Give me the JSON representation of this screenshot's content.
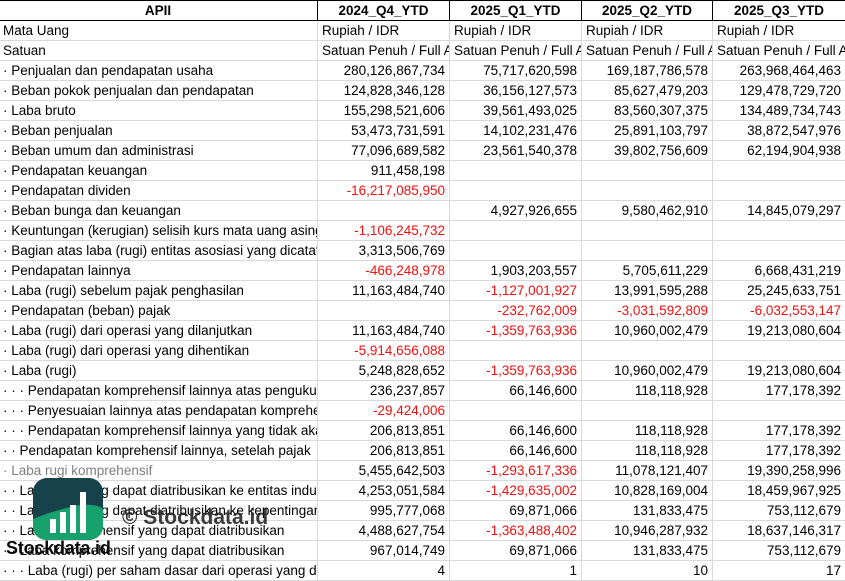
{
  "header": {
    "ticker": "APII",
    "columns": [
      "2024_Q4_YTD",
      "2025_Q1_YTD",
      "2025_Q2_YTD",
      "2025_Q3_YTD"
    ]
  },
  "meta_rows": [
    {
      "label": "Mata Uang",
      "values": [
        "Rupiah / IDR",
        "Rupiah / IDR",
        "Rupiah / IDR",
        "Rupiah / IDR"
      ]
    },
    {
      "label": "Satuan",
      "values": [
        "Satuan Penuh / Full Amount",
        "Satuan Penuh / Full Amount",
        "Satuan Penuh / Full Amount",
        "Satuan Penuh / Full Amount"
      ]
    }
  ],
  "rows": [
    {
      "label": "· Penjualan dan pendapatan usaha",
      "values": [
        "280,126,867,734",
        "75,717,620,598",
        "169,187,786,578",
        "263,968,464,463"
      ]
    },
    {
      "label": "· Beban pokok penjualan dan pendapatan",
      "values": [
        "124,828,346,128",
        "36,156,127,573",
        "85,627,479,203",
        "129,478,729,720"
      ]
    },
    {
      "label": "· Laba bruto",
      "values": [
        "155,298,521,606",
        "39,561,493,025",
        "83,560,307,375",
        "134,489,734,743"
      ]
    },
    {
      "label": "· Beban penjualan",
      "values": [
        "53,473,731,591",
        "14,102,231,476",
        "25,891,103,797",
        "38,872,547,976"
      ]
    },
    {
      "label": "· Beban umum dan administrasi",
      "values": [
        "77,096,689,582",
        "23,561,540,378",
        "39,802,756,609",
        "62,194,904,938"
      ]
    },
    {
      "label": "· Pendapatan keuangan",
      "values": [
        "911,458,198",
        "",
        "",
        ""
      ]
    },
    {
      "label": "· Pendapatan dividen",
      "values": [
        "-16,217,085,950",
        "",
        "",
        ""
      ]
    },
    {
      "label": "· Beban bunga dan keuangan",
      "values": [
        "",
        "4,927,926,655",
        "9,580,462,910",
        "14,845,079,297"
      ]
    },
    {
      "label": "· Keuntungan (kerugian) selisih kurs mata uang asing",
      "values": [
        "-1,106,245,732",
        "",
        "",
        ""
      ]
    },
    {
      "label": "· Bagian atas laba (rugi) entitas asosiasi yang dicatat",
      "values": [
        "3,313,506,769",
        "",
        "",
        ""
      ]
    },
    {
      "label": "· Pendapatan lainnya",
      "values": [
        "-466,248,978",
        "1,903,203,557",
        "5,705,611,229",
        "6,668,431,219"
      ]
    },
    {
      "label": "· Laba (rugi) sebelum pajak penghasilan",
      "values": [
        "11,163,484,740",
        "-1,127,001,927",
        "13,991,595,288",
        "25,245,633,751"
      ]
    },
    {
      "label": "· Pendapatan (beban) pajak",
      "values": [
        "",
        "-232,762,009",
        "-3,031,592,809",
        "-6,032,553,147"
      ]
    },
    {
      "label": "· Laba (rugi) dari operasi yang dilanjutkan",
      "values": [
        "11,163,484,740",
        "-1,359,763,936",
        "10,960,002,479",
        "19,213,080,604"
      ]
    },
    {
      "label": "· Laba (rugi) dari operasi yang dihentikan",
      "values": [
        "-5,914,656,088",
        "",
        "",
        ""
      ]
    },
    {
      "label": "· Laba (rugi)",
      "values": [
        "5,248,828,652",
        "-1,359,763,936",
        "10,960,002,479",
        "19,213,080,604"
      ]
    },
    {
      "label": "· · · Pendapatan komprehensif lainnya atas pengukuran",
      "values": [
        "236,237,857",
        "66,146,600",
        "118,118,928",
        "177,178,392"
      ]
    },
    {
      "label": "· · · Penyesuaian lainnya atas pendapatan komprehensif",
      "values": [
        "-29,424,006",
        "",
        "",
        ""
      ]
    },
    {
      "label": "· · · Pendapatan komprehensif lainnya yang tidak akan",
      "values": [
        "206,813,851",
        "66,146,600",
        "118,118,928",
        "177,178,392"
      ]
    },
    {
      "label": "· · Pendapatan komprehensif lainnya, setelah pajak",
      "values": [
        "206,813,851",
        "66,146,600",
        "118,118,928",
        "177,178,392"
      ]
    },
    {
      "label": "· Laba rugi komprehensif",
      "muted": true,
      "values": [
        "5,455,642,503",
        "-1,293,617,336",
        "11,078,121,407",
        "19,390,258,996"
      ]
    },
    {
      "label": "· · Laba rugi yang dapat diatribusikan ke entitas induk",
      "values": [
        "4,253,051,584",
        "-1,429,635,002",
        "10,828,169,004",
        "18,459,967,925"
      ]
    },
    {
      "label": "· · Laba rugi yang dapat diatribusikan ke kepentingan",
      "values": [
        "995,777,068",
        "69,871,066",
        "131,833,475",
        "753,112,679"
      ]
    },
    {
      "label": "· · Laba komprehensif yang dapat diatribusikan",
      "values": [
        "4,488,627,754",
        "-1,363,488,402",
        "10,946,287,932",
        "18,637,146,317"
      ]
    },
    {
      "label": "· · Laba komprehensif yang dapat diatribusikan",
      "values": [
        "967,014,749",
        "69,871,066",
        "131,833,475",
        "753,112,679"
      ]
    },
    {
      "label": "· · · Laba (rugi) per saham dasar dari operasi yang dilanjutkan",
      "values": [
        "4",
        "1",
        "10",
        "17"
      ]
    }
  ],
  "watermark": {
    "copyright": "© Stockdata.id",
    "brand": "Stockdata.id"
  },
  "colors": {
    "negative": "#f01010",
    "muted_label": "#7f7f7f",
    "gridline": "#d9d9d9",
    "header_border": "#000000",
    "logo_dark": "#15424b",
    "logo_green": "#17a16c"
  }
}
